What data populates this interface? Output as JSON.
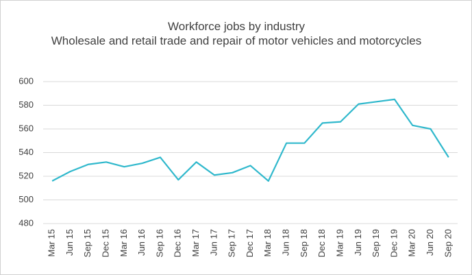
{
  "chart_data": {
    "type": "line",
    "title": "Workforce jobs by industry",
    "subtitle": "Wholesale and retail trade and repair of motor vehicles and motorcycles",
    "categories": [
      "Mar 15",
      "Jun 15",
      "Sep 15",
      "Dec 15",
      "Mar 16",
      "Jun 16",
      "Sep 16",
      "Dec 16",
      "Mar 17",
      "Jun 17",
      "Sep 17",
      "Dec 17",
      "Mar 18",
      "Jun 18",
      "Sep 18",
      "Dec 18",
      "Mar 19",
      "Jun 19",
      "Sep 19",
      "Dec 19",
      "Mar 20",
      "Jun 20",
      "Sep 20"
    ],
    "series": [
      {
        "name": "Workforce jobs",
        "color": "#2fb8cc",
        "values": [
          516,
          524,
          530,
          532,
          528,
          531,
          536,
          517,
          532,
          521,
          523,
          529,
          516,
          548,
          548,
          565,
          566,
          581,
          583,
          585,
          563,
          560,
          536
        ]
      }
    ],
    "ylim": [
      480,
      600
    ],
    "yticks": [
      480,
      500,
      520,
      540,
      560,
      580,
      600
    ],
    "grid": true
  }
}
